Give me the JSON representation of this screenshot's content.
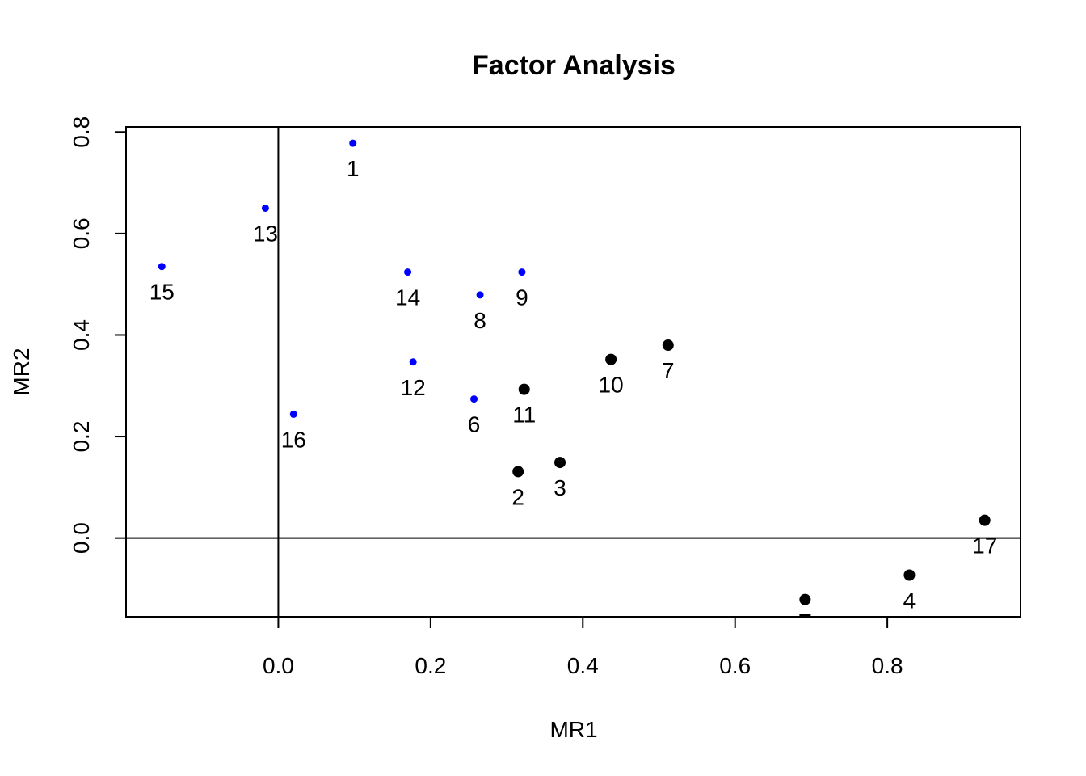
{
  "chart_data": {
    "type": "scatter",
    "title": "Factor Analysis",
    "xlabel": "MR1",
    "ylabel": "MR2",
    "xlim": [
      -0.2,
      0.975
    ],
    "ylim": [
      -0.155,
      0.81
    ],
    "x_ticks": [
      0.0,
      0.2,
      0.4,
      0.6,
      0.8
    ],
    "y_ticks": [
      0.0,
      0.2,
      0.4,
      0.6,
      0.8
    ],
    "x_tick_labels": [
      "0.0",
      "0.2",
      "0.4",
      "0.6",
      "0.8"
    ],
    "y_tick_labels": [
      "0.0",
      "0.2",
      "0.4",
      "0.6",
      "0.8"
    ],
    "reference_lines": {
      "x": 0,
      "y": 0
    },
    "grid": false,
    "colors": {
      "group_a": "#0000ff",
      "group_b": "#000000"
    },
    "points": [
      {
        "label": "1",
        "x": 0.098,
        "y": 0.778,
        "group": "group_a"
      },
      {
        "label": "13",
        "x": -0.017,
        "y": 0.65,
        "group": "group_a"
      },
      {
        "label": "15",
        "x": -0.153,
        "y": 0.535,
        "group": "group_a"
      },
      {
        "label": "14",
        "x": 0.17,
        "y": 0.524,
        "group": "group_a"
      },
      {
        "label": "9",
        "x": 0.32,
        "y": 0.524,
        "group": "group_a"
      },
      {
        "label": "8",
        "x": 0.265,
        "y": 0.479,
        "group": "group_a"
      },
      {
        "label": "12",
        "x": 0.177,
        "y": 0.347,
        "group": "group_a"
      },
      {
        "label": "6",
        "x": 0.257,
        "y": 0.274,
        "group": "group_a"
      },
      {
        "label": "16",
        "x": 0.02,
        "y": 0.244,
        "group": "group_a"
      },
      {
        "label": "7",
        "x": 0.512,
        "y": 0.38,
        "group": "group_b"
      },
      {
        "label": "10",
        "x": 0.437,
        "y": 0.352,
        "group": "group_b"
      },
      {
        "label": "11",
        "x": 0.323,
        "y": 0.293,
        "group": "group_b"
      },
      {
        "label": "3",
        "x": 0.37,
        "y": 0.149,
        "group": "group_b"
      },
      {
        "label": "2",
        "x": 0.315,
        "y": 0.131,
        "group": "group_b"
      },
      {
        "label": "17",
        "x": 0.928,
        "y": 0.035,
        "group": "group_b"
      },
      {
        "label": "4",
        "x": 0.829,
        "y": -0.073,
        "group": "group_b"
      },
      {
        "label": "",
        "x": 0.692,
        "y": -0.121,
        "group": "group_b"
      }
    ]
  }
}
